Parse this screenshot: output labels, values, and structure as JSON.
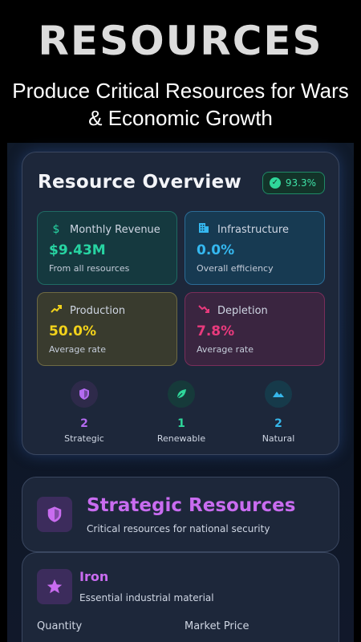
{
  "banner": {
    "title": "RESOURCES",
    "subtitle": "Produce Critical Resources for Wars & Economic Growth"
  },
  "overview": {
    "title": "Resource Overview",
    "badge": "93.3%",
    "stats": {
      "revenue": {
        "label": "Monthly Revenue",
        "value": "$9.43M",
        "caption": "From all resources",
        "icon": "dollar-icon",
        "color": "#27d4a2"
      },
      "infrastructure": {
        "label": "Infrastructure",
        "value": "0.0%",
        "caption": "Overall efficiency",
        "icon": "building-icon",
        "color": "#35b8f0"
      },
      "production": {
        "label": "Production",
        "value": "50.0%",
        "caption": "Average rate",
        "icon": "trending-up-icon",
        "color": "#f2d21b"
      },
      "depletion": {
        "label": "Depletion",
        "value": "7.8%",
        "caption": "Average rate",
        "icon": "trending-down-icon",
        "color": "#e93a7d"
      }
    },
    "counts": [
      {
        "number": "2",
        "label": "Strategic",
        "icon": "shield-icon",
        "color": "#b36bf0"
      },
      {
        "number": "1",
        "label": "Renewable",
        "icon": "leaf-icon",
        "color": "#2fd69a"
      },
      {
        "number": "2",
        "label": "Natural",
        "icon": "mountain-icon",
        "color": "#36b7ea"
      }
    ]
  },
  "strategic": {
    "title": "Strategic Resources",
    "subtitle": "Critical resources for national security",
    "icon": "shield-icon"
  },
  "resource": {
    "name": "Iron",
    "description": "Essential industrial material",
    "icon": "star-icon",
    "quantity_label": "Quantity",
    "price_label": "Market Price"
  }
}
